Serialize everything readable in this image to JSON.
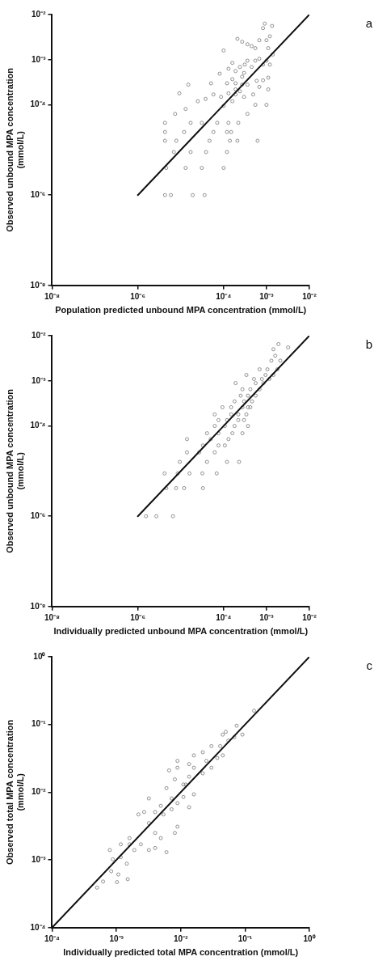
{
  "chart_data": [
    {
      "type": "scatter",
      "xlabel": "Population predicted unbound MPA concentration (mmol/L)",
      "ylabel": "Observed unbound MPA concentration\n(mmol/L)",
      "annotations": [
        "a"
      ],
      "log": "xy",
      "grid": false,
      "legend": false,
      "marker": "circle",
      "xlim": [
        1e-08,
        0.01
      ],
      "ylim": [
        1e-08,
        0.01
      ],
      "xticks": [
        {
          "value": 1e-08,
          "label": "10⁻⁸"
        },
        {
          "value": 1e-06,
          "label": "10⁻⁶"
        },
        {
          "value": 0.0001,
          "label": "10⁻⁴"
        },
        {
          "value": 0.001,
          "label": "10⁻³"
        },
        {
          "value": 0.01,
          "label": "10⁻²"
        }
      ],
      "yticks": [
        {
          "value": 1e-08,
          "label": "10⁻⁸"
        },
        {
          "value": 1e-06,
          "label": "10⁻⁶"
        },
        {
          "value": 0.0001,
          "label": "10⁻⁴"
        },
        {
          "value": 0.001,
          "label": "10⁻³"
        },
        {
          "value": 0.01,
          "label": "10⁻²"
        }
      ],
      "series": [
        {
          "color": "#777777",
          "x": [
            4.3e-06,
            5.9e-06,
            1.9e-05,
            3.6e-05,
            4.6e-06,
            1.3e-05,
            3.1e-05,
            0.0001,
            6.9e-06,
            1.7e-05,
            3.9e-05,
            0.00012,
            4.3e-06,
            7.9e-06,
            4.7e-05,
            0.00014,
            0.00021,
            0.00062,
            4.3e-06,
            1.2e-05,
            5.8e-05,
            0.00012,
            0.00015,
            4.3e-06,
            1.7e-05,
            3.1e-05,
            7.1e-05,
            0.00013,
            0.00022,
            7.4e-06,
            1.3e-05,
            2.5e-05,
            3.8e-05,
            5.8e-05,
            8.7e-05,
            0.0001,
            0.00013,
            0.00016,
            0.00019,
            0.00024,
            0.0003,
            0.00036,
            0.00055,
            0.001,
            0.0011,
            0.00068,
            0.00059,
            0.00049,
            0.00036,
            0.00027,
            0.00019,
            0.00016,
            0.00013,
            0.00016,
            0.00019,
            0.00024,
            0.0003,
            0.00036,
            0.00045,
            0.00055,
            0.00068,
            0.00083,
            0.001,
            0.0012,
            0.0014,
            0.0011,
            0.001,
            0.0012,
            0.00091,
            0.00135,
            0.00083,
            0.00068,
            0.00055,
            0.00045,
            0.00036,
            0.00027,
            0.00021,
            0.0001,
            8.1e-05,
            1.5e-05,
            9.3e-06,
            5.1e-05,
            0.00012,
            0.00027,
            0.00031,
            0.00083,
            0.0011,
            0.00019
          ],
          "values": [
            1e-06,
            1e-06,
            1e-06,
            1e-06,
            4e-06,
            4e-06,
            4e-06,
            4e-06,
            9e-06,
            9e-06,
            9e-06,
            9e-06,
            1.6e-05,
            1.6e-05,
            1.6e-05,
            1.6e-05,
            1.6e-05,
            1.6e-05,
            2.5e-05,
            2.5e-05,
            2.5e-05,
            2.5e-05,
            2.5e-05,
            4e-05,
            4e-05,
            4e-05,
            4e-05,
            4e-05,
            4e-05,
            6.3e-05,
            8.1e-05,
            0.00012,
            0.000135,
            0.00017,
            0.00015,
            9.5e-05,
            0.00018,
            0.00012,
            0.00017,
            0.0002,
            0.00015,
            6.3e-05,
            0.0001,
            0.0001,
            0.00022,
            0.00025,
            0.00034,
            0.00017,
            0.00028,
            0.00028,
            0.00022,
            0.00037,
            0.00063,
            0.00085,
            0.00056,
            0.00069,
            0.00051,
            0.00095,
            0.00069,
            0.00095,
            0.00105,
            0.00078,
            0.00095,
            0.00078,
            0.0013,
            0.0018,
            0.0027,
            0.0033,
            0.0063,
            0.0056,
            0.005,
            0.0027,
            0.0018,
            0.002,
            0.0022,
            0.0025,
            0.0029,
            0.0016,
            0.00049,
            0.00028,
            0.00018,
            0.0003,
            0.0003,
            0.00042,
            0.00078,
            0.00035,
            0.0004,
            0.0003
          ]
        },
        {
          "type": "line",
          "marker": "none",
          "color": "#111111",
          "x": [
            1e-06,
            0.01
          ],
          "values": [
            1e-06,
            0.01
          ]
        }
      ]
    },
    {
      "type": "scatter",
      "xlabel": "Individually predicted unbound MPA concentration (mmol/L)",
      "ylabel": "Observed unbound MPA concentration\n(mmol/L)",
      "annotations": [
        "b"
      ],
      "log": "xy",
      "grid": false,
      "legend": false,
      "marker": "circle",
      "xlim": [
        1e-08,
        0.01
      ],
      "ylim": [
        1e-08,
        0.01
      ],
      "xticks": [
        {
          "value": 1e-08,
          "label": "10⁻⁸"
        },
        {
          "value": 1e-06,
          "label": "10⁻⁶"
        },
        {
          "value": 0.0001,
          "label": "10⁻⁴"
        },
        {
          "value": 0.001,
          "label": "10⁻³"
        },
        {
          "value": 0.01,
          "label": "10⁻²"
        }
      ],
      "yticks": [
        {
          "value": 1e-08,
          "label": "10⁻⁸"
        },
        {
          "value": 1e-06,
          "label": "10⁻⁶"
        },
        {
          "value": 0.0001,
          "label": "10⁻⁴"
        },
        {
          "value": 0.001,
          "label": "10⁻³"
        },
        {
          "value": 0.01,
          "label": "10⁻²"
        }
      ],
      "series": [
        {
          "color": "#777777",
          "x": [
            1.55e-06,
            2.7e-06,
            6.6e-06,
            4.6e-06,
            7.8e-06,
            1.2e-05,
            3.3e-05,
            4.2e-06,
            8.5e-06,
            1.6e-05,
            3.2e-05,
            6.9e-05,
            9.5e-06,
            4.1e-05,
            0.00012,
            0.00023,
            1.4e-05,
            2.7e-05,
            6.2e-05,
            3.3e-05,
            7.6e-05,
            0.000107,
            1.4e-05,
            5e-05,
            0.00013,
            4.1e-05,
            7.6e-05,
            0.00016,
            0.000275,
            6.2e-05,
            0.000107,
            0.00018,
            0.00037,
            7.6e-05,
            0.00012,
            0.00022,
            0.0003,
            6.2e-05,
            0.00015,
            0.00022,
            0.00034,
            9.4e-05,
            0.00015,
            0.000275,
            0.00042,
            0.00018,
            0.0003,
            0.00046,
            0.00025,
            0.00037,
            0.00056,
            0.000275,
            0.00042,
            0.00069,
            0.00019,
            0.00056,
            0.00085,
            0.00051,
            0.00078,
            0.00117,
            0.00034,
            0.00095,
            0.00145,
            0.00069,
            0.00105,
            0.0018,
            0.0013,
            0.0021,
            0.0016,
            0.00145,
            0.0032,
            0.0019,
            0.00037
          ],
          "values": [
            1e-06,
            1e-06,
            1e-06,
            4.2e-06,
            4.2e-06,
            4.2e-06,
            4.2e-06,
            8.9e-06,
            8.9e-06,
            8.9e-06,
            8.9e-06,
            8.9e-06,
            1.6e-05,
            1.6e-05,
            1.6e-05,
            1.6e-05,
            2.6e-05,
            2.6e-05,
            2.6e-05,
            3.7e-05,
            3.7e-05,
            3.7e-05,
            5.1e-05,
            5.1e-05,
            5.1e-05,
            6.9e-05,
            6.9e-05,
            6.9e-05,
            6.9e-05,
            0.0001,
            0.0001,
            0.0001,
            0.0001,
            0.000135,
            0.000135,
            0.000135,
            0.000135,
            0.00018,
            0.00018,
            0.00018,
            0.00018,
            0.00026,
            0.00026,
            0.00026,
            0.00026,
            0.00035,
            0.00035,
            0.00035,
            0.00047,
            0.00047,
            0.00047,
            0.00065,
            0.00065,
            0.00065,
            0.00089,
            0.00089,
            0.00089,
            0.0011,
            0.0011,
            0.0011,
            0.00135,
            0.00135,
            0.00135,
            0.0018,
            0.0018,
            0.0018,
            0.0028,
            0.0028,
            0.0036,
            0.005,
            0.0055,
            0.0065,
            0.00026
          ]
        },
        {
          "type": "line",
          "marker": "none",
          "color": "#111111",
          "x": [
            1e-06,
            0.01
          ],
          "values": [
            1e-06,
            0.01
          ]
        }
      ]
    },
    {
      "type": "scatter",
      "xlabel": "Individually predicted total MPA concentration (mmol/L)",
      "ylabel": "Observed total MPA concentration\n(mmol/L)",
      "annotations": [
        "c"
      ],
      "log": "xy",
      "grid": false,
      "legend": false,
      "marker": "circle",
      "xlim": [
        0.0001,
        1
      ],
      "ylim": [
        0.0001,
        1
      ],
      "xticks": [
        {
          "value": 0.0001,
          "label": "10⁻⁴"
        },
        {
          "value": 0.001,
          "label": "10⁻³"
        },
        {
          "value": 0.01,
          "label": "10⁻²"
        },
        {
          "value": 0.1,
          "label": "10⁻¹"
        },
        {
          "value": 1,
          "label": "10⁰"
        }
      ],
      "yticks": [
        {
          "value": 0.0001,
          "label": "10⁻⁴"
        },
        {
          "value": 0.001,
          "label": "10⁻³"
        },
        {
          "value": 0.01,
          "label": "10⁻²"
        },
        {
          "value": 0.1,
          "label": "10⁻¹"
        },
        {
          "value": 1,
          "label": "10⁰"
        }
      ],
      "series": [
        {
          "color": "#777777",
          "x": [
            0.0005,
            0.00062,
            0.00102,
            0.0015,
            0.00083,
            0.00107,
            0.00079,
            0.00088,
            0.00117,
            0.00145,
            0.0016,
            0.00117,
            0.0016,
            0.0019,
            0.0024,
            0.0032,
            0.004,
            0.0022,
            0.0032,
            0.004,
            0.0049,
            0.006,
            0.0081,
            0.0089,
            0.0054,
            0.004,
            0.0072,
            0.0089,
            0.011,
            0.0135,
            0.016,
            0.011,
            0.0081,
            0.0066,
            0.0089,
            0.0135,
            0.016,
            0.022,
            0.025,
            0.03,
            0.037,
            0.045,
            0.022,
            0.016,
            0.0135,
            0.03,
            0.041,
            0.055,
            0.068,
            0.05,
            0.074,
            0.091,
            0.045,
            0.138,
            0.0072,
            0.012,
            0.0032,
            0.0049,
            0.0027,
            0.006,
            0.0089
          ],
          "values": [
            0.00039,
            0.00048,
            0.00047,
            0.00052,
            0.00068,
            0.00061,
            0.0014,
            0.00102,
            0.0011,
            0.00088,
            0.0017,
            0.0017,
            0.0021,
            0.0014,
            0.0017,
            0.0014,
            0.0015,
            0.0047,
            0.0035,
            0.0025,
            0.0021,
            0.0013,
            0.0025,
            0.0031,
            0.0047,
            0.0051,
            0.0056,
            0.0069,
            0.0085,
            0.006,
            0.0093,
            0.013,
            0.0155,
            0.021,
            0.023,
            0.017,
            0.023,
            0.019,
            0.029,
            0.023,
            0.032,
            0.035,
            0.039,
            0.035,
            0.026,
            0.048,
            0.048,
            0.058,
            0.065,
            0.078,
            0.096,
            0.071,
            0.071,
            0.16,
            0.0081,
            0.013,
            0.0081,
            0.0063,
            0.0051,
            0.0115,
            0.029
          ]
        },
        {
          "type": "line",
          "marker": "none",
          "color": "#111111",
          "x": [
            0.0001,
            1
          ],
          "values": [
            0.0001,
            1
          ]
        }
      ]
    }
  ]
}
